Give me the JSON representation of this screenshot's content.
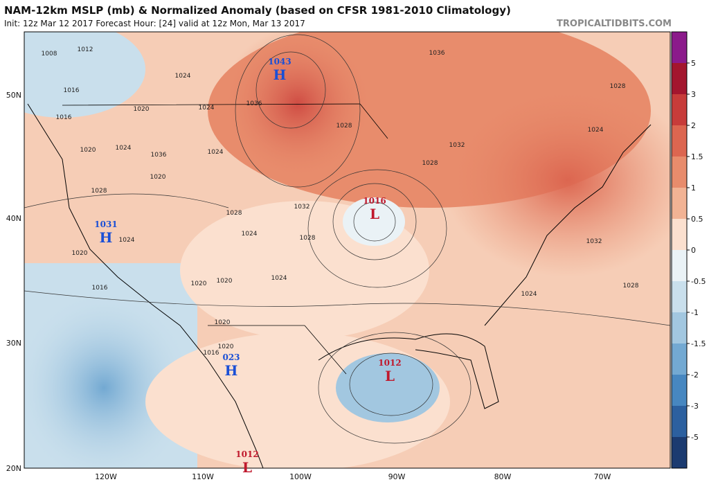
{
  "header": {
    "title": "NAM-12km MSLP (mb) & Normalized Anomaly (based on CFSR 1981-2010 Climatology)",
    "subtitle": "Init: 12z Mar 12 2017   Forecast Hour: [24]   valid at 12z Mon, Mar 13 2017",
    "credit": "TROPICALTIDBITS.COM"
  },
  "colorbar": {
    "labels": [
      "5",
      "3",
      "2",
      "1.5",
      "1",
      "0.5",
      "0",
      "-0.5",
      "-1",
      "-1.5",
      "-2",
      "-3",
      "-5"
    ],
    "colors": [
      "#8b1a8b",
      "#a3162e",
      "#c73c3a",
      "#dc6650",
      "#e88c6c",
      "#f2b394",
      "#fbe0cf",
      "#eaf2f6",
      "#c9dfec",
      "#a2c7e0",
      "#73a9d2",
      "#4787c0",
      "#2c609f",
      "#1b3b70"
    ]
  },
  "lat_labels": [
    "50N",
    "40N",
    "30N",
    "20N"
  ],
  "lon_labels": [
    "120W",
    "110W",
    "100W",
    "90W",
    "80W",
    "70W"
  ],
  "centers": [
    {
      "value": "1043",
      "symbol": "H"
    },
    {
      "value": "1016",
      "symbol": "L"
    },
    {
      "value": "1031",
      "symbol": "H"
    },
    {
      "value": "023",
      "symbol": "H"
    },
    {
      "value": "1012",
      "symbol": "L"
    },
    {
      "value": "1012",
      "symbol": "L"
    }
  ],
  "contour_labels": [
    "1008",
    "1012",
    "1016",
    "1016",
    "1020",
    "1024",
    "1028",
    "1036",
    "1020",
    "1024",
    "1024",
    "1024",
    "1036",
    "1036",
    "1032",
    "1028",
    "1024",
    "1028",
    "1032",
    "1028",
    "1024",
    "1032",
    "1024",
    "1028",
    "1020",
    "1024",
    "1020",
    "1020",
    "1016",
    "1020",
    "1016",
    "1020",
    "1020",
    "1024",
    "1028",
    "1028"
  ]
}
